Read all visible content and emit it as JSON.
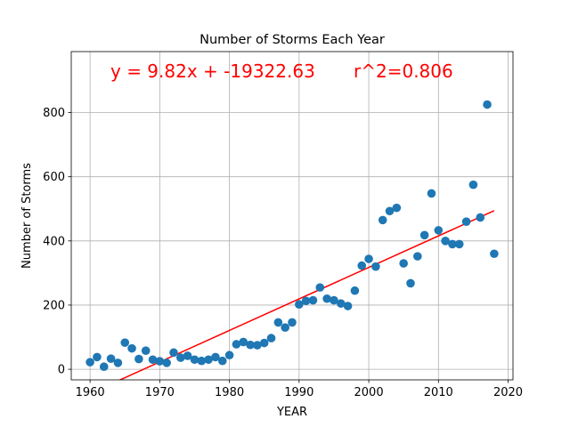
{
  "chart_data": {
    "type": "scatter",
    "title": "Number of Storms Each Year",
    "xlabel": "YEAR",
    "ylabel": "Number of Storms",
    "xlim": [
      1957.3,
      2020.7
    ],
    "ylim": [
      -33,
      990
    ],
    "xticks": [
      1960,
      1970,
      1980,
      1990,
      2000,
      2010,
      2020
    ],
    "yticks": [
      0,
      200,
      400,
      600,
      800
    ],
    "grid": true,
    "point_color": "#1f77b4",
    "fit_color": "#ff0000",
    "annotation": {
      "equation": "y = 9.82x + -19322.63",
      "r2": "r^2=0.806",
      "color": "#ff0000"
    },
    "fit_line": {
      "slope": 9.82,
      "intercept": -19322.63,
      "x_range": [
        1960,
        2018
      ]
    },
    "series": [
      {
        "x": [
          1960,
          1961,
          1962,
          1963,
          1964,
          1965,
          1966,
          1967,
          1968,
          1969,
          1970,
          1971,
          1972,
          1973,
          1974,
          1975,
          1976,
          1977,
          1978,
          1979,
          1980,
          1981,
          1982,
          1983,
          1984,
          1985,
          1986,
          1987,
          1988,
          1989,
          1990,
          1991,
          1992,
          1993,
          1994,
          1995,
          1996,
          1997,
          1998,
          1999,
          2000,
          2001,
          2002,
          2003,
          2004,
          2005,
          2006,
          2007,
          2008,
          2009,
          2010,
          2011,
          2012,
          2013,
          2014,
          2015,
          2016,
          2017,
          2018
        ],
        "y": [
          22,
          38,
          8,
          33,
          20,
          83,
          65,
          32,
          58,
          30,
          25,
          20,
          52,
          36,
          42,
          30,
          26,
          30,
          38,
          26,
          44,
          78,
          85,
          76,
          75,
          82,
          97,
          146,
          130,
          146,
          202,
          213,
          215,
          255,
          220,
          215,
          205,
          197,
          245,
          323,
          344,
          320,
          465,
          493,
          503,
          330,
          268,
          352,
          418,
          548,
          433,
          400,
          390,
          390,
          460,
          575,
          473,
          825,
          360
        ]
      }
    ]
  }
}
